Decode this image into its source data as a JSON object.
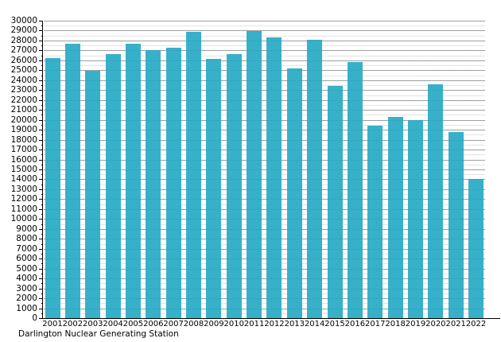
{
  "chart_data": {
    "type": "bar",
    "title": "",
    "caption": "Darlington Nuclear Generating Station",
    "categories": [
      "2001",
      "2002",
      "2003",
      "2004",
      "2005",
      "2006",
      "2007",
      "2008",
      "2009",
      "2010",
      "2011",
      "2012",
      "2013",
      "2014",
      "2015",
      "2016",
      "2017",
      "2018",
      "2019",
      "2020",
      "2021",
      "2022"
    ],
    "values": [
      26200,
      27700,
      24950,
      26600,
      27650,
      27000,
      27300,
      28900,
      26150,
      26600,
      28950,
      28350,
      25150,
      28050,
      23400,
      25850,
      19400,
      20300,
      19950,
      23550,
      18800,
      14050
    ],
    "xlabel": "",
    "ylabel": "",
    "ylim": [
      0,
      30000
    ],
    "ytick_step": 1000,
    "yminor_step": 500,
    "ytick_labels": [
      "0",
      "1000",
      "2000",
      "3000",
      "4000",
      "5000",
      "6000",
      "7000",
      "8000",
      "9000",
      "10000",
      "11000",
      "12000",
      "13000",
      "14000",
      "15000",
      "16000",
      "17000",
      "18000",
      "19000",
      "20000",
      "21000",
      "22000",
      "23000",
      "24000",
      "25000",
      "26000",
      "27000",
      "28000",
      "29000",
      "30000"
    ],
    "grid": "horizontal major+minor",
    "legend": "none",
    "colors": {
      "bar": "#37b1c9",
      "grid_major": "#a8a8a8",
      "grid_minor": "#e4e4e4",
      "axis": "#000000",
      "background": "#ffffff",
      "text": "#000000"
    }
  }
}
